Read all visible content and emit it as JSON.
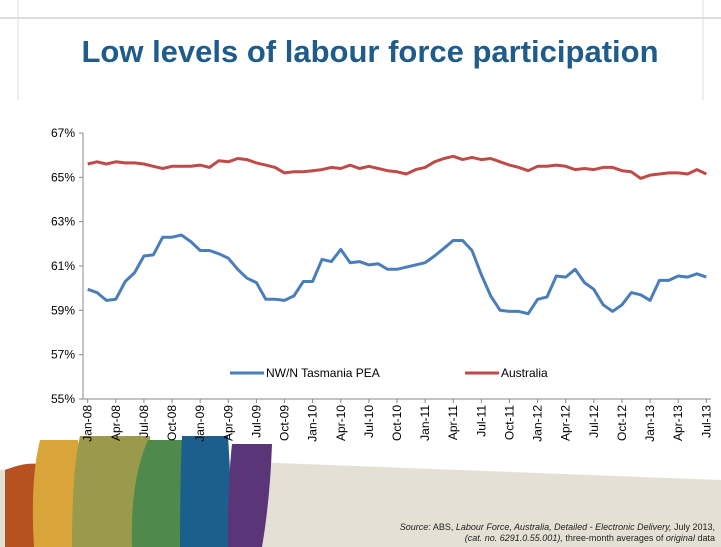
{
  "chart_data": {
    "type": "line",
    "title": "Low levels of labour force participation",
    "categories": [
      "Jan-08",
      null,
      null,
      "Apr-08",
      null,
      null,
      "Jul-08",
      null,
      null,
      "Oct-08",
      null,
      null,
      "Jan-09",
      null,
      null,
      "Apr-09",
      null,
      null,
      "Jul-09",
      null,
      null,
      "Oct-09",
      null,
      null,
      "Jan-10",
      null,
      null,
      "Apr-10",
      null,
      null,
      "Jul-10",
      null,
      null,
      "Oct-10",
      null,
      null,
      "Jan-11",
      null,
      null,
      "Apr-11",
      null,
      null,
      "Jul-11",
      null,
      null,
      "Oct-11",
      null,
      null,
      "Jan-12",
      null,
      null,
      "Apr-12",
      null,
      null,
      "Jul-12",
      null,
      null,
      "Oct-12",
      null,
      null,
      "Jan-13",
      null,
      null,
      "Apr-13",
      null,
      null,
      "Jul-13"
    ],
    "series": [
      {
        "name": "NW/N Tasmania PEA",
        "color": "#4a7ebb",
        "values": [
          59.95,
          59.8,
          59.45,
          59.5,
          60.3,
          60.7,
          61.45,
          61.5,
          62.3,
          62.3,
          62.4,
          62.1,
          61.7,
          61.7,
          61.55,
          61.35,
          60.85,
          60.45,
          60.25,
          59.5,
          59.5,
          59.45,
          59.65,
          60.3,
          60.3,
          61.3,
          61.2,
          61.75,
          61.15,
          61.2,
          61.05,
          61.1,
          60.85,
          60.85,
          60.95,
          61.05,
          61.15,
          61.45,
          61.8,
          62.15,
          62.15,
          61.7,
          60.6,
          59.65,
          59.0,
          58.95,
          58.95,
          58.85,
          59.5,
          59.6,
          60.55,
          60.5,
          60.85,
          60.25,
          59.95,
          59.25,
          58.95,
          59.25,
          59.8,
          59.7,
          59.45,
          60.35,
          60.35,
          60.55,
          60.5,
          60.65,
          60.5
        ]
      },
      {
        "name": "Australia",
        "color": "#be4b48",
        "values": [
          65.6,
          65.7,
          65.6,
          65.7,
          65.65,
          65.65,
          65.6,
          65.5,
          65.4,
          65.5,
          65.5,
          65.5,
          65.55,
          65.45,
          65.75,
          65.7,
          65.85,
          65.8,
          65.65,
          65.55,
          65.45,
          65.2,
          65.25,
          65.25,
          65.3,
          65.35,
          65.45,
          65.4,
          65.55,
          65.4,
          65.5,
          65.4,
          65.3,
          65.25,
          65.15,
          65.35,
          65.45,
          65.7,
          65.85,
          65.95,
          65.8,
          65.9,
          65.8,
          65.85,
          65.7,
          65.55,
          65.45,
          65.3,
          65.5,
          65.5,
          65.55,
          65.5,
          65.35,
          65.4,
          65.35,
          65.45,
          65.45,
          65.3,
          65.25,
          64.95,
          65.1,
          65.15,
          65.2,
          65.2,
          65.15,
          65.35,
          65.15
        ]
      }
    ],
    "ylim": [
      55,
      67
    ],
    "yticks": [
      {
        "value": 55,
        "label": "55%"
      },
      {
        "value": 57,
        "label": "57%"
      },
      {
        "value": 59,
        "label": "59%"
      },
      {
        "value": 61,
        "label": "61%"
      },
      {
        "value": 63,
        "label": "63%"
      },
      {
        "value": 65,
        "label": "65%"
      },
      {
        "value": 67,
        "label": "67%"
      }
    ],
    "grid": false,
    "legend": "lower center"
  },
  "source": [
    "Source:",
    "ABS,",
    "Labour Force, Australia, Detailed - Electronic Delivery,",
    "July 2013,",
    "(cat. no. 6291.0.55.001),",
    "three-month averages of",
    "original",
    "data"
  ]
}
